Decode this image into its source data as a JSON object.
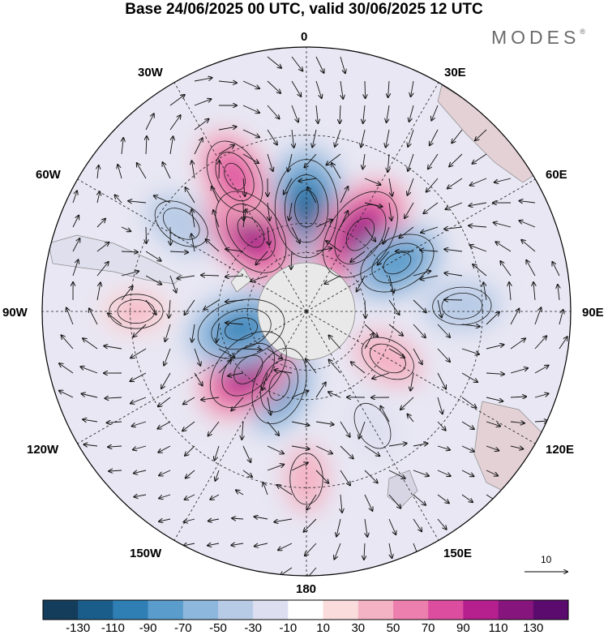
{
  "title": "Base 24/06/2025 00 UTC, valid 30/06/2025 12 UTC",
  "brand": {
    "name": "MODES",
    "mark": "®"
  },
  "longitude_labels": {
    "lon_0": "0",
    "lon_30e": "30E",
    "lon_60e": "60E",
    "lon_90e": "90E",
    "lon_120e": "120E",
    "lon_150e": "150E",
    "lon_180": "180",
    "lon_150w": "150W",
    "lon_120w": "120W",
    "lon_90w": "90W",
    "lon_60w": "60W",
    "lon_30w": "30W"
  },
  "reference_vector": {
    "value": "10"
  },
  "colorbar": {
    "colors": [
      "#143d5c",
      "#1b5d8a",
      "#2f7fb5",
      "#5a9ccb",
      "#8db7dc",
      "#b8cbe6",
      "#dddff0",
      "#ffffff",
      "#fadcdc",
      "#f4b3c4",
      "#ec7fae",
      "#dc4d9f",
      "#b51f8e",
      "#86157d",
      "#5b0b6e"
    ],
    "ticks": [
      "-130",
      "-110",
      "-90",
      "-70",
      "-50",
      "-30",
      "-10",
      "10",
      "30",
      "50",
      "70",
      "90",
      "110",
      "130"
    ]
  },
  "anomaly_centers": [
    {
      "lon": 0,
      "lat": -55,
      "value": -130
    },
    {
      "lon": 35,
      "lat": -58,
      "value": 125
    },
    {
      "lon": 62,
      "lat": -55,
      "value": -90
    },
    {
      "lon": 88,
      "lat": -37,
      "value": -50
    },
    {
      "lon": 120,
      "lat": -58,
      "value": 45
    },
    {
      "lon": 150,
      "lat": -45,
      "value": -30
    },
    {
      "lon": 180,
      "lat": -33,
      "value": 35
    },
    {
      "lon": -160,
      "lat": -63,
      "value": -90
    },
    {
      "lon": -135,
      "lat": -62,
      "value": 115
    },
    {
      "lon": -105,
      "lat": -67,
      "value": -110
    },
    {
      "lon": -90,
      "lat": -32,
      "value": 40
    },
    {
      "lon": -55,
      "lat": -38,
      "value": -50
    },
    {
      "lon": -35,
      "lat": -57,
      "value": 115
    },
    {
      "lon": -28,
      "lat": -38,
      "value": 85
    }
  ]
}
